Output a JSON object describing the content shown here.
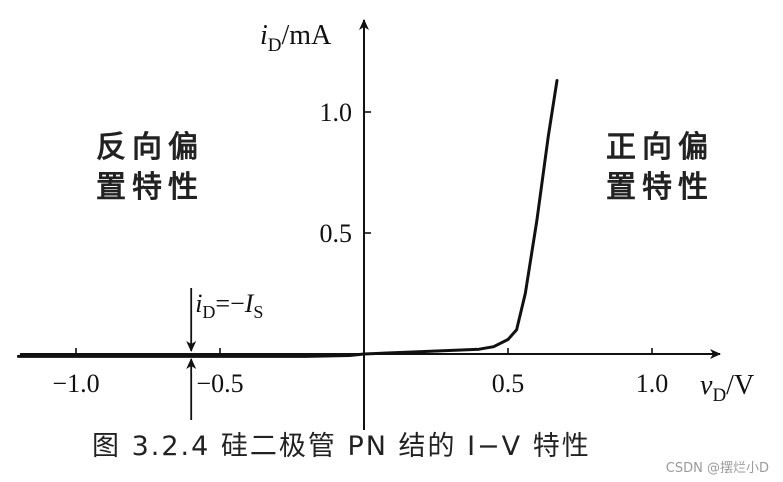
{
  "chart_data": {
    "type": "line",
    "title": "",
    "xlabel_var": "v",
    "xlabel_sub": "D",
    "xlabel_unit": "/V",
    "ylabel_var": "i",
    "ylabel_sub": "D",
    "ylabel_unit": "/mA",
    "x_ticks": [
      -1.0,
      -0.5,
      0.5,
      1.0
    ],
    "x_tick_labels": [
      "−1.0",
      "−0.5",
      "0.5",
      "1.0"
    ],
    "y_ticks": [
      0.5,
      1.0
    ],
    "y_tick_labels": [
      "0.5",
      "1.0"
    ],
    "xlim": [
      -1.2,
      1.25
    ],
    "ylim": [
      -0.1,
      1.35
    ],
    "grid": false,
    "series": [
      {
        "x": [
          -1.2,
          -1.0,
          -0.5,
          -0.2,
          -0.05,
          0,
          0.2,
          0.4,
          0.45,
          0.5,
          0.53,
          0.56,
          0.6,
          0.64,
          0.67
        ],
        "y": [
          -0.01,
          -0.01,
          -0.01,
          -0.01,
          -0.006,
          0,
          0.01,
          0.02,
          0.03,
          0.06,
          0.1,
          0.25,
          0.55,
          0.9,
          1.13
        ]
      }
    ],
    "annotation": {
      "var": "i",
      "sub_d": "D",
      "eq": "=−",
      "var2": "I",
      "sub_s": "S",
      "x": -0.6
    }
  },
  "labels": {
    "reverse_bias": "反向偏置特性",
    "forward_bias": "正向偏置特性",
    "caption": "图 3.2.4   硅二极管 PN 结的 I−V 特性",
    "watermark": "CSDN @摆烂小D"
  }
}
